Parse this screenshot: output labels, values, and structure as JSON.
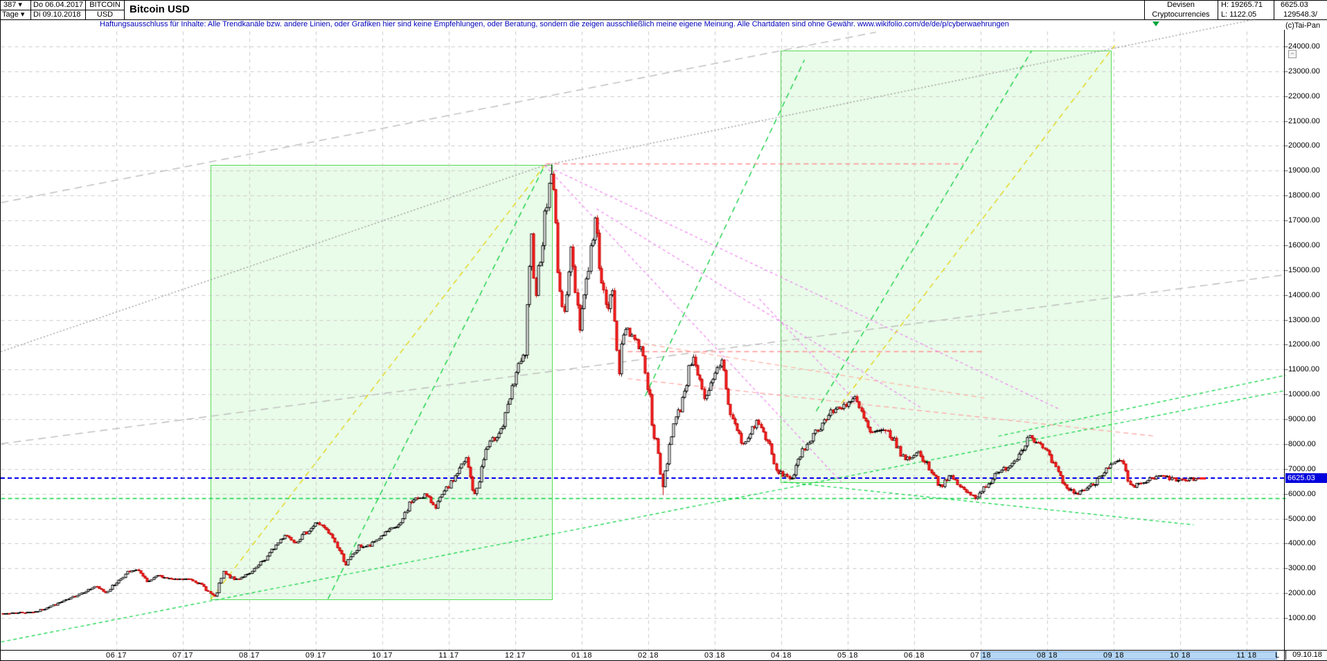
{
  "header": {
    "bars_count": "387",
    "period": "Tage",
    "date_from": "Do 06.04.2017",
    "date_to": "Di 09.10.2018",
    "symbol_line1": "BITCOIN",
    "symbol_line2": "USD",
    "title": "Bitcoin USD",
    "category_line1": "Devisen",
    "category_line2": "Cryptocurrencies",
    "high_label": "H: 19265.71",
    "low_label": "L: 1122.05",
    "last_price": "6625.03",
    "volume": "129548.3/",
    "copyright": "(c)Tai-Pan",
    "dropdown_arrow": "▾",
    "collapse_glyph": "−"
  },
  "disclaimer": "Haftungsausschluss für Inhalte: Alle Trendkanäle bzw. andere Linien, oder Grafiken hier sind keine Empfehlungen, oder Beratung, sondern die zeigen ausschließlich meine eigene Meinung. Alle Chartdaten sind ohne Gewähr.  www.wikifolio.com/de/de/p/cyberwaehrungen",
  "axis": {
    "y_labels": [
      "24000.00",
      "23000.00",
      "22000.00",
      "21000.00",
      "20000.00",
      "19000.00",
      "18000.00",
      "17000.00",
      "16000.00",
      "15000.00",
      "14000.00",
      "13000.00",
      "12000.00",
      "11000.00",
      "10000.00",
      "9000.00",
      "8000.00",
      "7000.00",
      "6000.00",
      "5000.00",
      "4000.00",
      "3000.00",
      "2000.00",
      "1000.00"
    ],
    "x_months": [
      [
        "06",
        "17"
      ],
      [
        "07",
        "17"
      ],
      [
        "08",
        "17"
      ],
      [
        "09",
        "17"
      ],
      [
        "10",
        "17"
      ],
      [
        "11",
        "17"
      ],
      [
        "12",
        "17"
      ],
      [
        "01",
        "18"
      ],
      [
        "02",
        "18"
      ],
      [
        "03",
        "18"
      ],
      [
        "04",
        "18"
      ],
      [
        "05",
        "18"
      ],
      [
        "06",
        "18"
      ],
      [
        "07",
        "18"
      ],
      [
        "08",
        "18"
      ],
      [
        "09",
        "18"
      ],
      [
        "10",
        "18"
      ],
      [
        "11",
        "18"
      ]
    ],
    "current_price_chip": "6625.03",
    "l_marker": "L",
    "last_date": "09.10.18",
    "range_highlight_months": "07/18 - 11/18"
  },
  "chart_data": {
    "type": "candlestick",
    "title": "Bitcoin USD",
    "currency": "USD",
    "high": 19265.71,
    "low": 1122.05,
    "last_close": 6625.03,
    "x_range": [
      "2017-04-06",
      "2018-10-09"
    ],
    "y_range": [
      1000,
      24000
    ],
    "grid": true,
    "keypoints": [
      [
        "2017-04-06",
        1180
      ],
      [
        "2017-04-25",
        1260
      ],
      [
        "2017-05-10",
        1770
      ],
      [
        "2017-05-22",
        2280
      ],
      [
        "2017-05-27",
        2050
      ],
      [
        "2017-06-06",
        2850
      ],
      [
        "2017-06-11",
        2950
      ],
      [
        "2017-06-15",
        2420
      ],
      [
        "2017-06-20",
        2720
      ],
      [
        "2017-06-27",
        2550
      ],
      [
        "2017-07-05",
        2580
      ],
      [
        "2017-07-10",
        2340
      ],
      [
        "2017-07-16",
        1830
      ],
      [
        "2017-07-20",
        2820
      ],
      [
        "2017-07-25",
        2560
      ],
      [
        "2017-08-01",
        2780
      ],
      [
        "2017-08-08",
        3390
      ],
      [
        "2017-08-17",
        4380
      ],
      [
        "2017-08-22",
        4080
      ],
      [
        "2017-09-01",
        4880
      ],
      [
        "2017-09-08",
        4240
      ],
      [
        "2017-09-14",
        3190
      ],
      [
        "2017-09-20",
        3880
      ],
      [
        "2017-09-25",
        3920
      ],
      [
        "2017-10-01",
        4390
      ],
      [
        "2017-10-09",
        4790
      ],
      [
        "2017-10-13",
        5640
      ],
      [
        "2017-10-20",
        5980
      ],
      [
        "2017-10-25",
        5520
      ],
      [
        "2017-11-01",
        6440
      ],
      [
        "2017-11-08",
        7420
      ],
      [
        "2017-11-12",
        5880
      ],
      [
        "2017-11-17",
        7780
      ],
      [
        "2017-11-25",
        8740
      ],
      [
        "2017-12-01",
        10900
      ],
      [
        "2017-12-05",
        11650
      ],
      [
        "2017-12-08",
        16000
      ],
      [
        "2017-12-10",
        14300
      ],
      [
        "2017-12-17",
        19100
      ],
      [
        "2017-12-22",
        13000
      ],
      [
        "2017-12-26",
        15700
      ],
      [
        "2017-12-30",
        12900
      ],
      [
        "2018-01-06",
        16950
      ],
      [
        "2018-01-11",
        13300
      ],
      [
        "2018-01-14",
        14100
      ],
      [
        "2018-01-17",
        11200
      ],
      [
        "2018-01-20",
        12800
      ],
      [
        "2018-01-28",
        11700
      ],
      [
        "2018-02-01",
        9100
      ],
      [
        "2018-02-06",
        6250
      ],
      [
        "2018-02-10",
        8570
      ],
      [
        "2018-02-14",
        9480
      ],
      [
        "2018-02-20",
        11700
      ],
      [
        "2018-02-25",
        9650
      ],
      [
        "2018-03-05",
        11450
      ],
      [
        "2018-03-09",
        9200
      ],
      [
        "2018-03-15",
        7940
      ],
      [
        "2018-03-21",
        8950
      ],
      [
        "2018-03-26",
        8150
      ],
      [
        "2018-03-30",
        6900
      ],
      [
        "2018-04-06",
        6640
      ],
      [
        "2018-04-12",
        7890
      ],
      [
        "2018-04-20",
        8860
      ],
      [
        "2018-04-25",
        9350
      ],
      [
        "2018-05-05",
        9830
      ],
      [
        "2018-05-12",
        8460
      ],
      [
        "2018-05-20",
        8540
      ],
      [
        "2018-05-28",
        7370
      ],
      [
        "2018-06-03",
        7680
      ],
      [
        "2018-06-10",
        6830
      ],
      [
        "2018-06-13",
        6310
      ],
      [
        "2018-06-18",
        6720
      ],
      [
        "2018-06-24",
        6130
      ],
      [
        "2018-06-29",
        5880
      ],
      [
        "2018-07-08",
        6720
      ],
      [
        "2018-07-17",
        7330
      ],
      [
        "2018-07-24",
        8380
      ],
      [
        "2018-07-31",
        7750
      ],
      [
        "2018-08-05",
        7020
      ],
      [
        "2018-08-08",
        6390
      ],
      [
        "2018-08-14",
        6010
      ],
      [
        "2018-08-22",
        6380
      ],
      [
        "2018-08-28",
        7080
      ],
      [
        "2018-09-04",
        7340
      ],
      [
        "2018-09-08",
        6230
      ],
      [
        "2018-09-15",
        6510
      ],
      [
        "2018-09-22",
        6730
      ],
      [
        "2018-09-28",
        6590
      ],
      [
        "2018-10-03",
        6540
      ],
      [
        "2018-10-09",
        6625.03
      ]
    ],
    "boxes": [
      {
        "name": "trend-channel-box-2017",
        "from": "2017-07-14",
        "to": "2017-12-17",
        "top": 19240,
        "bottom": 1780
      },
      {
        "name": "trend-channel-box-2018",
        "from": "2018-04-01",
        "to": "2018-08-30",
        "top": 23830,
        "bottom": 6490
      }
    ],
    "trendlines": [
      {
        "name": "gray-channel-upper",
        "color": "#bbbbbb",
        "dash": [
          11,
          7
        ],
        "w": 1.4,
        "pts": [
          [
            0,
            291
          ],
          [
            1263,
            45
          ]
        ]
      },
      {
        "name": "gray-channel-lower",
        "color": "#bbbbbb",
        "dash": [
          11,
          7
        ],
        "w": 1.4,
        "pts": [
          [
            0,
            639
          ],
          [
            1855,
            395
          ]
        ]
      },
      {
        "name": "gray-dotted-support-to-peak",
        "color": "#999999",
        "dash": [
          2,
          3
        ],
        "w": 1.4,
        "pts": [
          [
            0,
            506
          ],
          [
            785,
            237
          ]
        ]
      },
      {
        "name": "gray-dotted-resistance-from-peak",
        "color": "#999999",
        "dash": [
          2,
          3
        ],
        "w": 1.4,
        "pts": [
          [
            785,
            237
          ],
          [
            1812,
            26
          ]
        ]
      },
      {
        "name": "yellow-trend-2017",
        "color": "#e3d200",
        "dash": [
          8,
          6
        ],
        "w": 1.3,
        "pts": [
          [
            303,
            863
          ],
          [
            785,
            237
          ]
        ]
      },
      {
        "name": "green-trend-2017",
        "color": "#00cc33",
        "dash": [
          8,
          6
        ],
        "w": 1.3,
        "pts": [
          [
            472,
            863
          ],
          [
            785,
            237
          ]
        ]
      },
      {
        "name": "green-support-long",
        "color": "#00d23c",
        "dash": [
          5,
          4
        ],
        "w": 1.2,
        "pts": [
          [
            0,
            925
          ],
          [
            1855,
            562
          ]
        ]
      },
      {
        "name": "green-support-long-2",
        "color": "#00d23c",
        "dash": [
          5,
          4
        ],
        "w": 1.2,
        "pts": [
          [
            1440,
            628
          ],
          [
            1855,
            540
          ]
        ]
      },
      {
        "name": "green-horizontal-support",
        "color": "#00d23c",
        "dash": [
          6,
          4
        ],
        "w": 1.3,
        "pts": [
          [
            0,
            718
          ],
          [
            1855,
            718
          ]
        ]
      },
      {
        "name": "green-falling-low",
        "color": "#00d23c",
        "dash": [
          5,
          4
        ],
        "w": 1.2,
        "pts": [
          [
            1130,
            694
          ],
          [
            1722,
            756
          ]
        ]
      },
      {
        "name": "green-trend-2018-a",
        "color": "#00cc33",
        "dash": [
          8,
          6
        ],
        "w": 1.3,
        "pts": [
          [
            930,
            570
          ],
          [
            1160,
            85
          ]
        ]
      },
      {
        "name": "green-trend-2018-b",
        "color": "#00cc33",
        "dash": [
          8,
          6
        ],
        "w": 1.3,
        "pts": [
          [
            1177,
            592
          ],
          [
            1488,
            72
          ]
        ]
      },
      {
        "name": "yellow-trend-2018",
        "color": "#e3d200",
        "dash": [
          8,
          6
        ],
        "w": 1.3,
        "pts": [
          [
            1205,
            592
          ],
          [
            1608,
            64
          ]
        ]
      },
      {
        "name": "salmon-peak-horizontal",
        "color": "#ff8f8f",
        "dash": [
          7,
          5
        ],
        "w": 1.3,
        "pts": [
          [
            787,
            235
          ],
          [
            1390,
            235
          ]
        ]
      },
      {
        "name": "salmon-feb-high-horizontal",
        "color": "#ff8f8f",
        "dash": [
          7,
          5
        ],
        "w": 1.3,
        "pts": [
          [
            905,
            506
          ],
          [
            1420,
            506
          ]
        ]
      },
      {
        "name": "salmon-falling-1",
        "color": "#ff9f9f",
        "dash": [
          7,
          5
        ],
        "w": 1.2,
        "pts": [
          [
            905,
            545
          ],
          [
            1666,
            628
          ]
        ]
      },
      {
        "name": "salmon-falling-2",
        "color": "#ffb0a0",
        "dash": [
          7,
          5
        ],
        "w": 1.2,
        "pts": [
          [
            880,
            487
          ],
          [
            1420,
            573
          ]
        ]
      },
      {
        "name": "violet-fan-1",
        "color": "#ee82ee",
        "dash": [
          4,
          4
        ],
        "w": 1.2,
        "pts": [
          [
            785,
            237
          ],
          [
            1213,
            694
          ]
        ]
      },
      {
        "name": "violet-fan-2",
        "color": "#ee82ee",
        "dash": [
          4,
          4
        ],
        "w": 1.2,
        "pts": [
          [
            860,
            300
          ],
          [
            1330,
            588
          ]
        ]
      },
      {
        "name": "violet-fan-3",
        "color": "#ee82ee",
        "dash": [
          4,
          4
        ],
        "w": 1.2,
        "pts": [
          [
            1095,
            430
          ],
          [
            1283,
            630
          ]
        ]
      },
      {
        "name": "violet-fan-4",
        "color": "#ee82ee",
        "dash": [
          4,
          4
        ],
        "w": 1.2,
        "pts": [
          [
            785,
            237
          ],
          [
            1530,
            590
          ]
        ]
      }
    ],
    "current_price_line": 6625.03
  },
  "colors": {
    "grid": "#c9c9c9",
    "up_body": "#ffffff",
    "up_border": "#000000",
    "down_body": "#ff2222",
    "down_border": "#c00000",
    "box_fill": "rgba(120,230,120,0.16)",
    "box_border": "#55dd55",
    "current_line": "#0000ee",
    "chip_bg": "#0000dd",
    "highlight": "#b5d6f4",
    "disclaimer": "#0000bb",
    "marker_green": "#00a33c",
    "tick_red": "#ff0000"
  }
}
